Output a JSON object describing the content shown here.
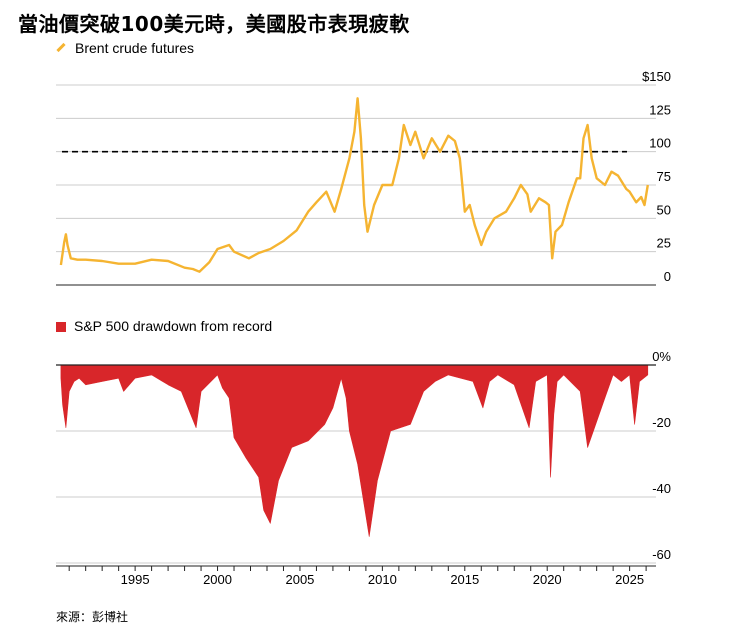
{
  "title": "當油價突破100美元時，美國股市表現疲軟",
  "source": "來源：彭博社",
  "colors": {
    "oil": "#f5b431",
    "drawdown": "#d8262a",
    "grid": "#cccccc",
    "axis": "#222222"
  },
  "chart_data": [
    {
      "type": "line",
      "series": [
        {
          "name": "Brent crude futures"
        }
      ],
      "legend": "Brent crude futures",
      "ylim": [
        0,
        150
      ],
      "ytick_labels": [
        "$150",
        "125",
        "100",
        "75",
        "50",
        "25",
        "0"
      ],
      "yticks": [
        150,
        125,
        100,
        75,
        50,
        25,
        0
      ],
      "reference_line": 100,
      "x": [
        1990.5,
        1990.7,
        1990.8,
        1990.9,
        1991.1,
        1991.5,
        1992,
        1993,
        1994,
        1995,
        1996,
        1997,
        1998,
        1998.5,
        1998.9,
        1999.5,
        2000,
        2000.7,
        2001,
        2001.9,
        2002.5,
        2003.2,
        2004,
        2004.8,
        2005.5,
        2006,
        2006.6,
        2007.1,
        2007.5,
        2008,
        2008.3,
        2008.5,
        2008.7,
        2008.9,
        2009.1,
        2009.5,
        2010,
        2010.6,
        2011,
        2011.3,
        2011.7,
        2012,
        2012.5,
        2013,
        2013.5,
        2014,
        2014.4,
        2014.7,
        2015,
        2015.3,
        2015.6,
        2016,
        2016.3,
        2016.8,
        2017.5,
        2018,
        2018.4,
        2018.8,
        2019,
        2019.5,
        2019.9,
        2020.1,
        2020.3,
        2020.5,
        2020.9,
        2021.3,
        2021.8,
        2022,
        2022.2,
        2022.45,
        2022.7,
        2023,
        2023.5,
        2023.9,
        2024.3,
        2024.8,
        2025,
        2025.4,
        2025.7,
        2025.9,
        2026.1
      ],
      "y": [
        15,
        32,
        38,
        30,
        20,
        19,
        19,
        18,
        16,
        16,
        19,
        18,
        13,
        12,
        10,
        17,
        27,
        30,
        25,
        20,
        24,
        27,
        33,
        41,
        55,
        62,
        70,
        55,
        72,
        95,
        115,
        140,
        110,
        60,
        40,
        60,
        75,
        75,
        95,
        120,
        105,
        115,
        95,
        110,
        100,
        112,
        108,
        95,
        55,
        60,
        45,
        30,
        40,
        50,
        55,
        65,
        75,
        68,
        55,
        65,
        62,
        60,
        20,
        40,
        45,
        62,
        80,
        80,
        110,
        120,
        95,
        80,
        75,
        85,
        82,
        72,
        70,
        62,
        66,
        60,
        75
      ]
    },
    {
      "type": "area",
      "series": [
        {
          "name": "S&P 500 drawdown from record"
        }
      ],
      "legend": "S&P 500 drawdown from record",
      "ylim": [
        -63,
        0
      ],
      "ytick_labels": [
        "0%",
        "-20",
        "-40",
        "-60"
      ],
      "yticks": [
        0,
        -20,
        -40,
        -60
      ],
      "x": [
        1990.5,
        1990.6,
        1990.8,
        1991.0,
        1991.3,
        1991.6,
        1992,
        1993,
        1994,
        1994.3,
        1995,
        1996,
        1997,
        1997.8,
        1998.7,
        1999,
        2000,
        2000.3,
        2000.7,
        2001,
        2001.7,
        2002.5,
        2002.8,
        2003.2,
        2003.7,
        2004.5,
        2005.5,
        2006.5,
        2007,
        2007.5,
        2007.8,
        2008,
        2008.5,
        2009.2,
        2009.7,
        2010.5,
        2011.7,
        2012.5,
        2013.2,
        2014,
        2015.5,
        2016.1,
        2016.5,
        2017,
        2018,
        2018.9,
        2019.3,
        2020,
        2020.2,
        2020.4,
        2020.6,
        2021,
        2022,
        2022.45,
        2022.8,
        2023.5,
        2024,
        2024.5,
        2025,
        2025.3,
        2025.6,
        2026.1
      ],
      "y": [
        -4,
        -12,
        -19,
        -8,
        -5,
        -4,
        -6,
        -5,
        -4,
        -8,
        -4,
        -3,
        -6,
        -8,
        -19,
        -8,
        -3,
        -7,
        -10,
        -22,
        -28,
        -34,
        -44,
        -48,
        -35,
        -25,
        -23,
        -18,
        -13,
        -4,
        -10,
        -20,
        -30,
        -52,
        -35,
        -20,
        -18,
        -8,
        -5,
        -3,
        -5,
        -13,
        -5,
        -3,
        -6,
        -19,
        -5,
        -3,
        -34,
        -15,
        -5,
        -3,
        -8,
        -25,
        -20,
        -10,
        -3,
        -5,
        -3,
        -18,
        -5,
        -3
      ]
    }
  ],
  "x_axis": {
    "range": [
      1990.2,
      2026.6
    ],
    "ticks": [
      1995,
      2000,
      2005,
      2010,
      2015,
      2020,
      2025
    ],
    "tick_labels": [
      "1995",
      "2000",
      "2005",
      "2010",
      "2015",
      "2020",
      "2025"
    ]
  }
}
